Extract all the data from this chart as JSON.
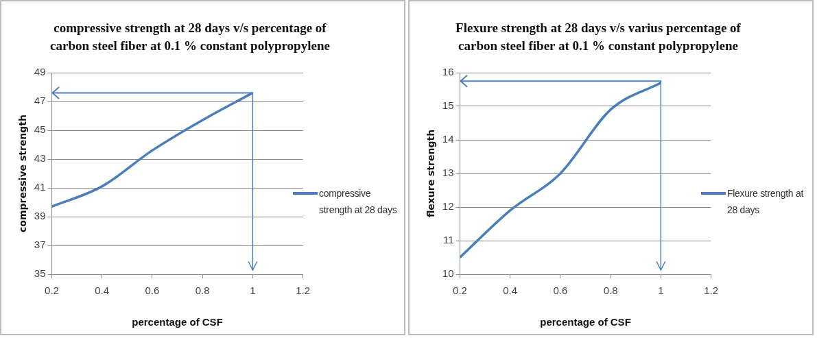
{
  "chart_data": [
    {
      "type": "line",
      "title": "compressive strength at 28 days v/s percentage of carbon steel fiber at 0.1 %  constant polypropylene",
      "xlabel": "percentage of CSF",
      "ylabel": "compressive strength",
      "x": [
        0.2,
        0.4,
        0.6,
        0.8,
        1
      ],
      "series": [
        {
          "name": "compressive strength at 28 days",
          "color": "#4a7ebb",
          "values": [
            39.7,
            41.1,
            43.6,
            45.7,
            47.6
          ]
        }
      ],
      "ref_lines": [
        {
          "axis": "y",
          "value": 47.6,
          "color": "#4a7ebb"
        },
        {
          "axis": "x",
          "value": 1,
          "color": "#4a7ebb"
        }
      ],
      "xlim": [
        0.2,
        1.2
      ],
      "xticks": [
        0.2,
        0.4,
        0.6,
        0.8,
        {
          "value": 1,
          "label": "1"
        },
        1.2
      ],
      "ylim": [
        35,
        49
      ],
      "yticks": [
        35,
        37,
        39,
        41,
        43,
        45,
        47,
        49
      ],
      "grid": "y",
      "legend": "right",
      "marker": "none",
      "line_style": "solid"
    },
    {
      "type": "line",
      "title": "Flexure strength at 28 days v/s varius percentage of carbon steel fiber at 0.1 %  constant polypropylene",
      "xlabel": "percentage of CSF",
      "ylabel": "flexure strength",
      "x": [
        0.2,
        0.4,
        0.6,
        0.8,
        1
      ],
      "series": [
        {
          "name": "Flexure strength at 28 days",
          "color": "#4a7ebb",
          "values": [
            10.5,
            11.9,
            13.0,
            14.9,
            15.7
          ]
        }
      ],
      "ref_lines": [
        {
          "axis": "y",
          "value": 15.75,
          "color": "#4a7ebb"
        },
        {
          "axis": "x",
          "value": 1,
          "color": "#4a7ebb"
        }
      ],
      "xlim": [
        0.2,
        1.2
      ],
      "xticks": [
        0.2,
        0.4,
        0.6,
        0.8,
        {
          "value": 1,
          "label": "1"
        },
        1.2
      ],
      "ylim": [
        10,
        16
      ],
      "yticks": [
        10,
        11,
        12,
        13,
        14,
        15,
        16
      ],
      "grid": "y",
      "legend": "right",
      "marker": "none",
      "line_style": "solid"
    }
  ]
}
